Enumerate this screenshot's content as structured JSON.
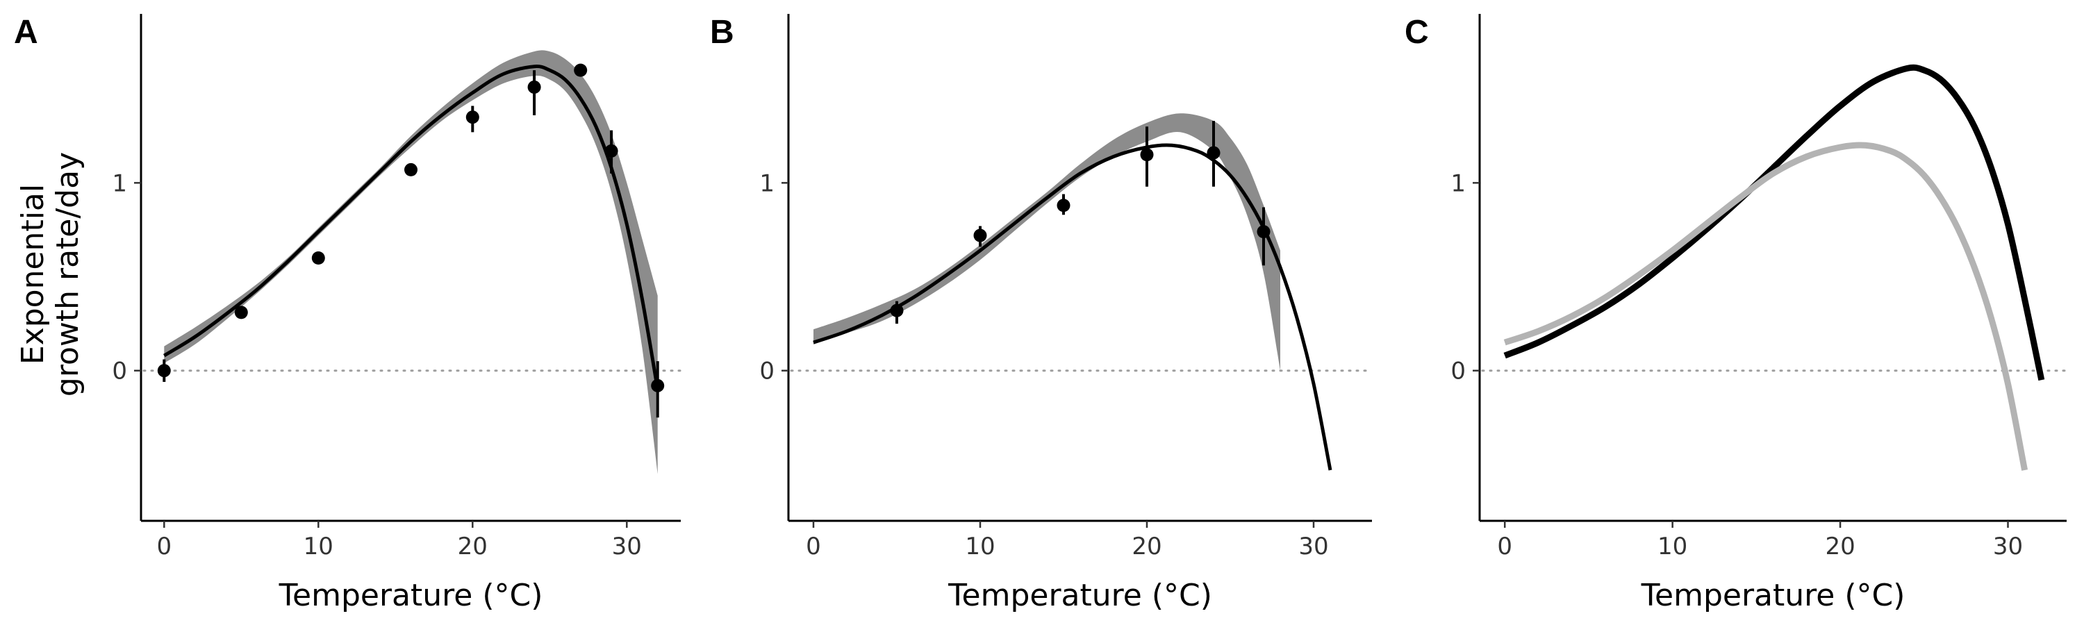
{
  "chart_data": [
    {
      "panel": "A",
      "type": "line",
      "xlabel": "Temperature (°C)",
      "ylabel_lines": [
        "Exponential",
        "growth rate/day"
      ],
      "xlim": [
        -1.5,
        33.5
      ],
      "ylim": [
        -0.8,
        1.9
      ],
      "xticks": [
        0,
        10,
        20,
        30
      ],
      "xtick_labels": [
        "0",
        "10",
        "20",
        "30"
      ],
      "yticks": [
        0,
        1
      ],
      "ytick_labels": [
        "0",
        "1"
      ],
      "reference_line": 0,
      "series": [
        {
          "role": "fit",
          "color": "#000000",
          "x": [
            0,
            2,
            4,
            6,
            8,
            10,
            12,
            14,
            16,
            18,
            20,
            22,
            24,
            25,
            26,
            27,
            28,
            29,
            30,
            31,
            32
          ],
          "y": [
            0.08,
            0.18,
            0.3,
            0.43,
            0.58,
            0.74,
            0.9,
            1.06,
            1.22,
            1.36,
            1.48,
            1.58,
            1.62,
            1.6,
            1.55,
            1.45,
            1.3,
            1.08,
            0.78,
            0.38,
            -0.1
          ]
        }
      ],
      "band": {
        "color": "#8c8c8c",
        "x": [
          0,
          2,
          4,
          6,
          8,
          10,
          12,
          14,
          16,
          18,
          20,
          22,
          24,
          25,
          26,
          27,
          28,
          29,
          30,
          31,
          32
        ],
        "lower": [
          0.04,
          0.14,
          0.27,
          0.41,
          0.56,
          0.72,
          0.88,
          1.04,
          1.19,
          1.33,
          1.44,
          1.53,
          1.57,
          1.55,
          1.49,
          1.37,
          1.2,
          0.95,
          0.6,
          0.12,
          -0.55
        ],
        "upper": [
          0.13,
          0.23,
          0.34,
          0.46,
          0.6,
          0.76,
          0.92,
          1.08,
          1.25,
          1.4,
          1.53,
          1.64,
          1.7,
          1.7,
          1.66,
          1.58,
          1.45,
          1.26,
          1.0,
          0.7,
          0.4
        ]
      },
      "points": {
        "x": [
          0,
          5,
          10,
          16,
          20,
          24,
          27,
          29,
          32
        ],
        "y": [
          0.0,
          0.31,
          0.6,
          1.07,
          1.35,
          1.51,
          1.6,
          1.17,
          -0.08
        ],
        "err_low": [
          -0.06,
          0.29,
          0.58,
          1.05,
          1.27,
          1.36,
          1.57,
          1.05,
          -0.25
        ],
        "err_high": [
          0.06,
          0.33,
          0.62,
          1.09,
          1.41,
          1.6,
          1.63,
          1.28,
          0.05
        ]
      }
    },
    {
      "panel": "B",
      "type": "line",
      "xlabel": "Temperature (°C)",
      "xlim": [
        -1.5,
        33.5
      ],
      "ylim": [
        -0.8,
        1.9
      ],
      "xticks": [
        0,
        10,
        20,
        30
      ],
      "xtick_labels": [
        "0",
        "10",
        "20",
        "30"
      ],
      "yticks": [
        0,
        1
      ],
      "ytick_labels": [
        "0",
        "1"
      ],
      "reference_line": 0,
      "series": [
        {
          "role": "fit",
          "color": "#000000",
          "x": [
            0,
            2,
            4,
            6,
            8,
            10,
            12,
            14,
            16,
            18,
            20,
            21.5,
            23,
            24,
            25,
            26,
            27,
            28,
            29,
            30,
            31
          ],
          "y": [
            0.15,
            0.21,
            0.29,
            0.39,
            0.51,
            0.64,
            0.78,
            0.92,
            1.05,
            1.14,
            1.19,
            1.2,
            1.17,
            1.12,
            1.04,
            0.92,
            0.76,
            0.55,
            0.28,
            -0.07,
            -0.53
          ]
        }
      ],
      "band": {
        "color": "#8c8c8c",
        "x": [
          0,
          2,
          4,
          6,
          8,
          10,
          12,
          14,
          16,
          18,
          20,
          22,
          24,
          25,
          26,
          27,
          28
        ],
        "lower": [
          0.14,
          0.2,
          0.26,
          0.35,
          0.46,
          0.59,
          0.74,
          0.89,
          1.03,
          1.14,
          1.22,
          1.27,
          1.17,
          1.03,
          0.83,
          0.52,
          0.0
        ],
        "upper": [
          0.22,
          0.28,
          0.35,
          0.43,
          0.54,
          0.67,
          0.81,
          0.95,
          1.1,
          1.23,
          1.32,
          1.37,
          1.33,
          1.24,
          1.1,
          0.88,
          0.64
        ]
      },
      "points": {
        "x": [
          5,
          10,
          15,
          20,
          24,
          27
        ],
        "y": [
          0.32,
          0.72,
          0.88,
          1.15,
          1.16,
          0.74
        ],
        "err_low": [
          0.25,
          0.66,
          0.83,
          0.98,
          0.98,
          0.56
        ],
        "err_high": [
          0.37,
          0.77,
          0.94,
          1.3,
          1.33,
          0.87
        ]
      }
    },
    {
      "panel": "C",
      "type": "line",
      "xlabel": "Temperature (°C)",
      "xlim": [
        -1.5,
        33.5
      ],
      "ylim": [
        -0.8,
        1.9
      ],
      "xticks": [
        0,
        10,
        20,
        30
      ],
      "xtick_labels": [
        "0",
        "10",
        "20",
        "30"
      ],
      "yticks": [
        0,
        1
      ],
      "ytick_labels": [
        "0",
        "1"
      ],
      "reference_line": 0,
      "series": [
        {
          "role": "curve",
          "color": "#000000",
          "x": [
            0,
            2,
            4,
            6,
            8,
            10,
            12,
            14,
            16,
            18,
            20,
            22,
            24,
            25,
            26,
            27,
            28,
            29,
            30,
            31,
            32
          ],
          "y": [
            0.08,
            0.15,
            0.24,
            0.34,
            0.46,
            0.6,
            0.75,
            0.91,
            1.08,
            1.25,
            1.41,
            1.54,
            1.61,
            1.6,
            1.55,
            1.45,
            1.3,
            1.08,
            0.78,
            0.38,
            -0.05
          ]
        },
        {
          "role": "curve",
          "color": "#b3b3b3",
          "x": [
            0,
            2,
            4,
            6,
            8,
            10,
            12,
            14,
            16,
            18,
            20,
            21.5,
            23,
            24,
            25,
            26,
            27,
            28,
            29,
            30,
            31
          ],
          "y": [
            0.15,
            0.21,
            0.29,
            0.39,
            0.51,
            0.64,
            0.78,
            0.92,
            1.05,
            1.14,
            1.19,
            1.2,
            1.17,
            1.12,
            1.04,
            0.92,
            0.76,
            0.55,
            0.28,
            -0.07,
            -0.53
          ]
        }
      ]
    }
  ]
}
